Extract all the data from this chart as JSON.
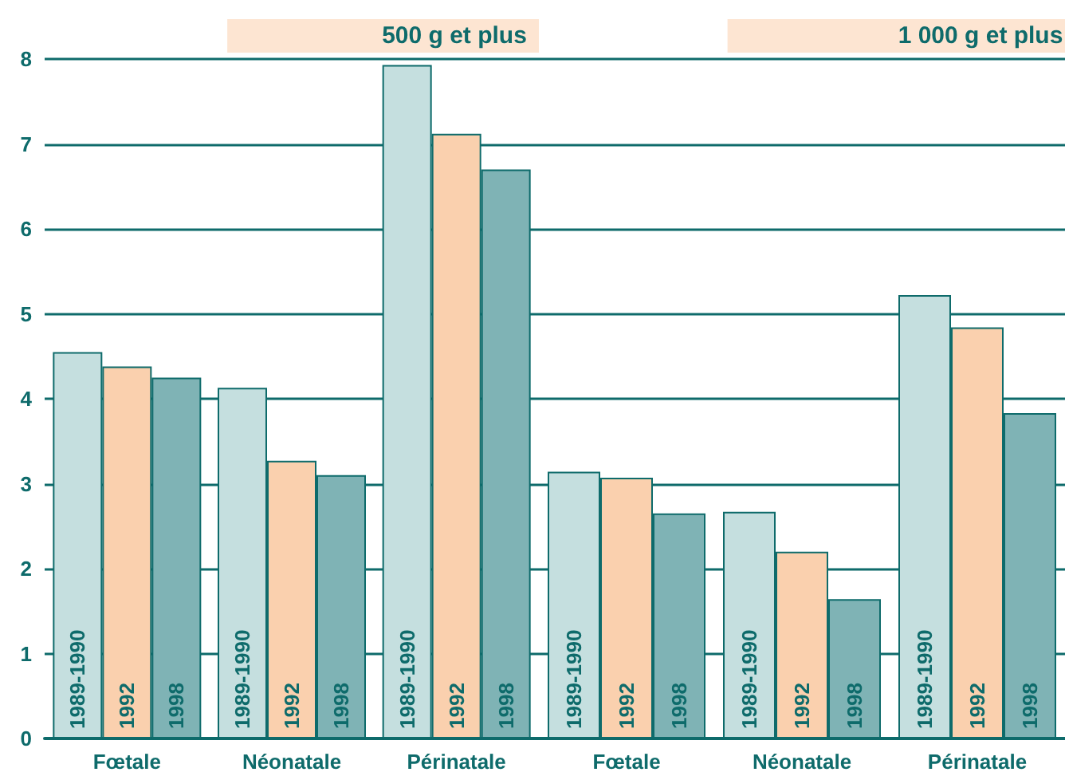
{
  "chart_data": [
    {
      "type": "bar",
      "title": "500 g et plus",
      "categories": [
        "Fœtale",
        "Néonatale",
        "Périnatale"
      ],
      "series": [
        {
          "name": "1989-1990",
          "color": "#c5dfdf",
          "values": [
            4.55,
            4.13,
            7.93
          ]
        },
        {
          "name": "1992",
          "color": "#fad0ae",
          "values": [
            4.38,
            3.27,
            7.12
          ]
        },
        {
          "name": "1998",
          "color": "#7fb3b5",
          "values": [
            4.25,
            3.1,
            6.7
          ]
        }
      ],
      "ylim": [
        0,
        8
      ],
      "yticks": [
        0,
        1,
        2,
        3,
        4,
        5,
        6,
        7,
        8
      ],
      "grid": "y",
      "legend": false
    },
    {
      "type": "bar",
      "title": "1 000 g et plus",
      "categories": [
        "Fœtale",
        "Néonatale",
        "Périnatale"
      ],
      "series": [
        {
          "name": "1989-1990",
          "color": "#c5dfdf",
          "values": [
            3.14,
            2.67,
            5.22
          ]
        },
        {
          "name": "1992",
          "color": "#fad0ae",
          "values": [
            3.07,
            2.2,
            4.84
          ]
        },
        {
          "name": "1998",
          "color": "#7fb3b5",
          "values": [
            2.65,
            1.64,
            3.83
          ]
        }
      ],
      "ylim": [
        0,
        8
      ],
      "yticks": [
        0,
        1,
        2,
        3,
        4,
        5,
        6,
        7,
        8
      ],
      "grid": "y",
      "legend": false,
      "tick_labels": "x"
    }
  ]
}
